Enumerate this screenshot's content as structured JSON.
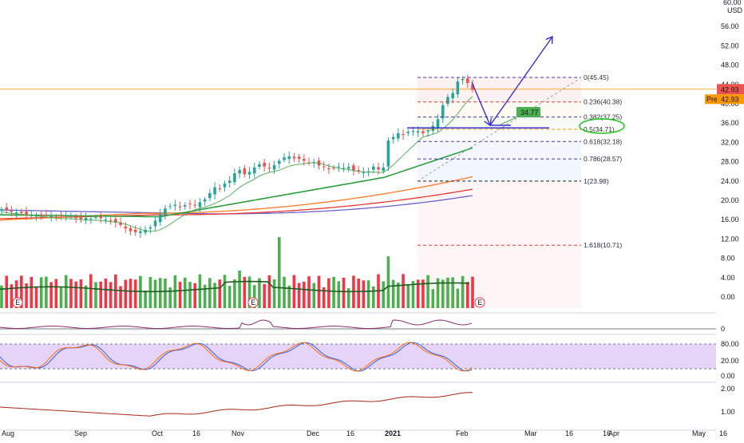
{
  "price_axis": {
    "header": [
      "60.00",
      "USD"
    ],
    "ticks": [
      "56.00",
      "52.00",
      "48.00",
      "44.00",
      "40.00",
      "36.00",
      "32.00",
      "28.00",
      "24.00",
      "20.00",
      "16.00",
      "12.00",
      "8.00",
      "4.00",
      "0.00"
    ],
    "last_price": "42.93",
    "premarket_badge": "Pre",
    "premarket_price": "42.93"
  },
  "panel_axes": {
    "panel1": [
      "0"
    ],
    "panel2": [
      "80.00",
      "20.00",
      "0.00"
    ],
    "panel3": [
      "2.00",
      "1.00"
    ]
  },
  "date_axis": [
    "Aug",
    "Sep",
    "Oct",
    "16",
    "Nov",
    "Dec",
    "16",
    "2021",
    "Feb",
    "16",
    "Mar",
    "16",
    "Apr",
    "May",
    "16"
  ],
  "earnings_markers": [
    "E",
    "E",
    "E"
  ],
  "fib_levels": [
    {
      "ratio": 0,
      "price": 45.45,
      "label": "0(45.45)"
    },
    {
      "ratio": 0.236,
      "price": 40.38,
      "label": "0.236(40.38)"
    },
    {
      "ratio": 0.382,
      "price": 37.25,
      "label": "0.382(37.25)"
    },
    {
      "ratio": 0.5,
      "price": 34.71,
      "label": "0.5(34.71)"
    },
    {
      "ratio": 0.618,
      "price": 32.18,
      "label": "0.618(32.18)"
    },
    {
      "ratio": 0.786,
      "price": 28.57,
      "label": "0.786(28.57)"
    },
    {
      "ratio": 1,
      "price": 23.98,
      "label": "1(23.98)"
    },
    {
      "ratio": 1.618,
      "price": 10.71,
      "label": "1.618(10.71)"
    }
  ],
  "annotation_box": "34.77",
  "colors": {
    "up": "#26a69a",
    "down": "#ef5350",
    "vol_up": "#4caf50",
    "vol_down": "#f23645",
    "fib_text": "#4b3ba8",
    "fib_orange": "#ff9800",
    "fib_red": "#e53935",
    "arrow": "#3a2fd0",
    "last_price_line": "#ff9800",
    "price_tag": "#ef5350",
    "ma_green": "#2e9e3e",
    "ma_orange": "#ff7b29",
    "ma_red": "#e53935",
    "ma_blue": "#6a63c9",
    "stoch_band": "#e2cdf7"
  },
  "chart_data": {
    "type": "candlestick",
    "x": [
      "Aug",
      "Sep",
      "Oct",
      "16",
      "Nov",
      "Dec",
      "16",
      "2021",
      "Feb",
      "16",
      "Mar",
      "16",
      "Apr",
      "May",
      "16"
    ],
    "price_range": [
      0,
      60
    ],
    "price_series": [
      18.2,
      17.9,
      17.6,
      17.5,
      17.4,
      17.0,
      16.9,
      16.8,
      16.9,
      17.0,
      16.7,
      16.5,
      16.8,
      16.9,
      16.6,
      16.3,
      16.1,
      16.4,
      16.2,
      16.5,
      16.3,
      16.0,
      15.8,
      15.4,
      14.9,
      14.2,
      13.6,
      13.4,
      13.6,
      13.9,
      14.4,
      15.8,
      17.2,
      18.3,
      18.8,
      19.1,
      18.7,
      19.0,
      19.2,
      18.9,
      19.6,
      20.2,
      21.5,
      22.7,
      22.4,
      23.5,
      24.1,
      25.6,
      26.3,
      25.4,
      25.9,
      26.8,
      27.5,
      27.0,
      26.6,
      27.3,
      28.2,
      28.9,
      29.1,
      28.7,
      28.6,
      28.2,
      27.7,
      27.9,
      27.2,
      26.9,
      26.5,
      26.7,
      27.0,
      26.7,
      26.9,
      26.2,
      26.0,
      25.8,
      26.0,
      27.0,
      26.4,
      26.8,
      32.4,
      33.1,
      33.9,
      33.6,
      34.2,
      34.4,
      34.3,
      33.9,
      34.5,
      35.4,
      36.8,
      39.7,
      41.4,
      42.2,
      44.6,
      45.1,
      44.3,
      42.9
    ],
    "fibonacci": {
      "high": 45.45,
      "low": 23.98
    },
    "volume_max": 12,
    "stoch_levels": [
      80,
      20
    ]
  }
}
